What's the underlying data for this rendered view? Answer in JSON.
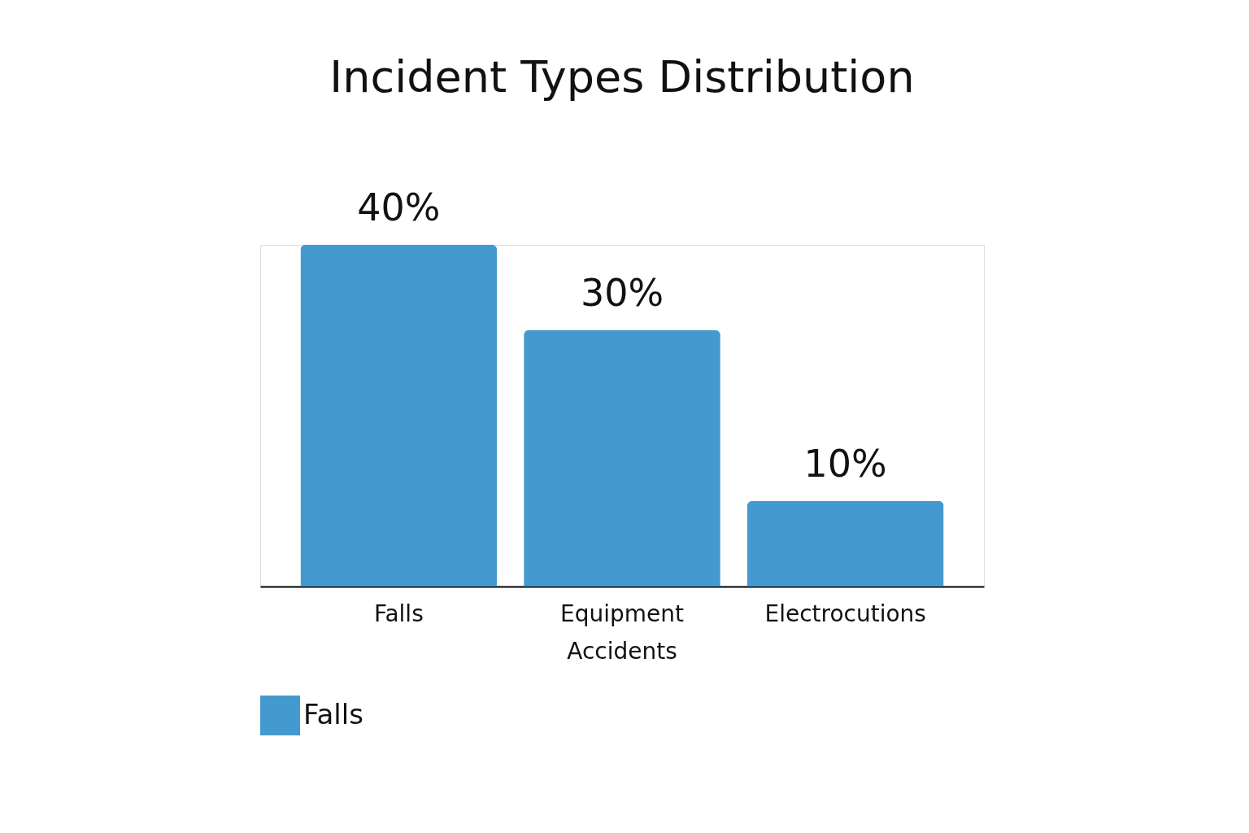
{
  "chart_data": {
    "type": "bar",
    "title": "Incident Types Distribution",
    "categories": [
      "Falls",
      "Equipment Accidents",
      "Electrocutions"
    ],
    "series": [
      {
        "name": "Falls",
        "color": "#4499cf",
        "values": [
          40,
          30,
          10
        ],
        "value_labels": [
          "40%",
          "30%",
          "10%"
        ]
      }
    ],
    "legend": "bottom",
    "grid": false
  }
}
